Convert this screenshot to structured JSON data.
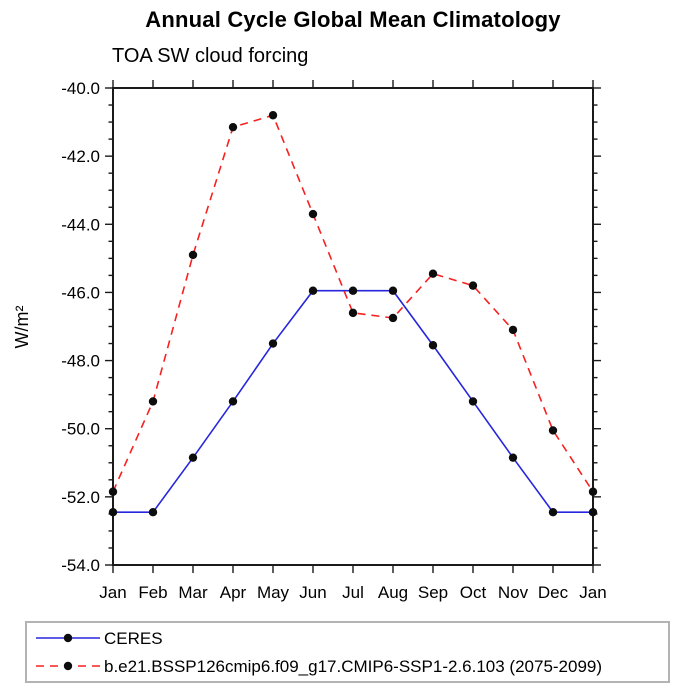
{
  "title": "Annual Cycle Global Mean Climatology",
  "subtitle": "TOA SW cloud forcing",
  "colors": {
    "axis": "#1a1a1a",
    "text": "#000000",
    "marker": "#0d0d0d",
    "legend_border": "#b3b3b3",
    "series_blue": "#2626dd",
    "series_red": "#f62120"
  },
  "chart_data": {
    "type": "line",
    "title": "Annual Cycle Global Mean Climatology",
    "subtitle": "TOA SW cloud forcing",
    "xlabel": "",
    "ylabel": "W/m²",
    "x_categories": [
      "Jan",
      "Feb",
      "Mar",
      "Apr",
      "May",
      "Jun",
      "Jul",
      "Aug",
      "Sep",
      "Oct",
      "Nov",
      "Dec",
      "Jan"
    ],
    "ylim": [
      -54.0,
      -40.0
    ],
    "y_major_tick_step": 2.0,
    "y_minor_tick_step": 0.5,
    "y_tick_labels": [
      "-40.0",
      "-42.0",
      "-44.0",
      "-46.0",
      "-48.0",
      "-50.0",
      "-52.0",
      "-54.0"
    ],
    "grid": false,
    "legend_position": "bottom",
    "series": [
      {
        "name": "CERES",
        "style": "solid",
        "color_key": "series_blue",
        "marker": "filled-circle",
        "values": [
          -52.45,
          -52.45,
          -50.85,
          -49.2,
          -47.5,
          -45.95,
          -45.95,
          -45.95,
          -47.55,
          -49.2,
          -50.85,
          -52.45,
          -52.45
        ]
      },
      {
        "name": "b.e21.BSSP126cmip6.f09_g17.CMIP6-SSP1-2.6.103 (2075-2099)",
        "style": "dashed",
        "color_key": "series_red",
        "marker": "filled-circle",
        "values": [
          -51.85,
          -49.2,
          -44.9,
          -41.15,
          -40.8,
          -43.7,
          -46.6,
          -46.75,
          -45.45,
          -45.8,
          -47.1,
          -50.05,
          -51.85
        ]
      }
    ]
  },
  "layout_note": ""
}
